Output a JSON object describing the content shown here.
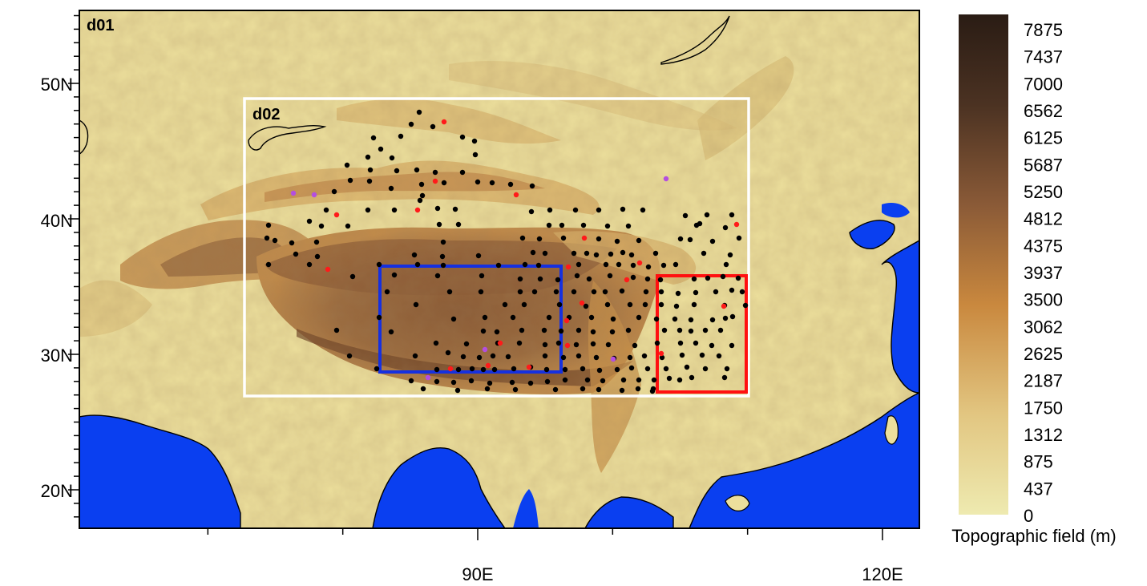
{
  "map": {
    "domain_outer": "d01",
    "domain_inner": "d02",
    "lat_labels": [
      "50N",
      "40N",
      "30N",
      "20N"
    ],
    "lon_labels": [
      "90E",
      "120E"
    ],
    "ocean_color": "#0a3ff0",
    "station_colors": {
      "regular": "#000000",
      "red": "#ff1a1a",
      "purple": "#b44ee0"
    },
    "box_colors": {
      "domain_d02": "#ffffff",
      "blue_region": "#1530e0",
      "red_region": "#ff1010"
    }
  },
  "colorbar": {
    "title": "Topographic field (m)",
    "ticks": [
      "7875",
      "7437",
      "7000",
      "6562",
      "6125",
      "5687",
      "5250",
      "4812",
      "4375",
      "3937",
      "3500",
      "3062",
      "2625",
      "2187",
      "1750",
      "1312",
      "875",
      "437",
      "0"
    ],
    "color_low": "#eeeab0",
    "color_mid": "#c9883e",
    "color_high": "#2a1c14"
  }
}
